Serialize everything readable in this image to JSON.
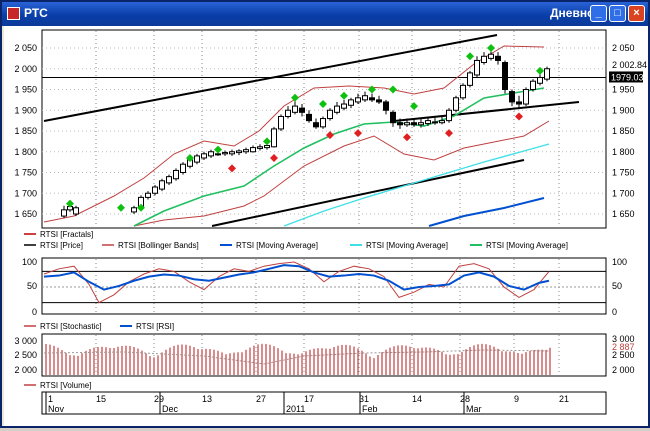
{
  "window": {
    "title": "РТС",
    "mode": "Дневной",
    "buttons": [
      "_",
      "□",
      "×"
    ]
  },
  "price_panel": {
    "y_ticks": [
      "2 050",
      "2 000",
      "1 950",
      "1 900",
      "1 850",
      "1 800",
      "1 750",
      "1 700",
      "1 650"
    ],
    "y_ticks_right": [
      "2 050",
      "2 002.84",
      "1979.03",
      "1 950",
      "1 900",
      "1 850",
      "1 800",
      "1 750",
      "1 700",
      "1 650"
    ],
    "current_value": "1979.03",
    "upper_value": "2 002.84",
    "legend": [
      {
        "label": "RTSI [Fractals]",
        "color": "#c00000"
      },
      {
        "label": "RTSI [Price]",
        "color": "#000000"
      },
      {
        "label": "RTSI [Bollinger Bands]",
        "color": "#c04040"
      },
      {
        "label": "RTSI [Moving Average]",
        "color": "#0050d0"
      },
      {
        "label": "RTSI [Moving Average]",
        "color": "#40d0e0"
      },
      {
        "label": "RTSI [Moving Average]",
        "color": "#20c060"
      }
    ]
  },
  "osc_panel": {
    "y_ticks": [
      "100",
      "50",
      "0"
    ],
    "y_ticks_right": [
      "100",
      "50",
      "0"
    ],
    "legend": [
      {
        "label": "RTSI [Stochastic]",
        "color": "#c04040"
      },
      {
        "label": "RTSI [RSI]",
        "color": "#0050d0"
      }
    ]
  },
  "volume_panel": {
    "y_ticks": [
      "3 000",
      "2 500",
      "2 000"
    ],
    "y_ticks_right": [
      "3 000",
      "2 887",
      "2 500",
      "2 000"
    ],
    "legend": [
      {
        "label": "RTSI [Volume]",
        "color": "#c04040"
      }
    ]
  },
  "x_axis": {
    "days": [
      "1",
      "15",
      "29",
      "13",
      "27",
      "17",
      "31",
      "14",
      "28",
      "9",
      "21"
    ],
    "months": [
      "Nov",
      "Dec",
      "2011",
      "Feb",
      "Mar"
    ]
  },
  "colors": {
    "fractal_up": "#10c010",
    "fractal_down": "#e02020",
    "bollinger": "#c04040",
    "ma_blue": "#0050d0",
    "ma_cyan": "#40e0e8",
    "ma_green": "#20c060"
  }
}
